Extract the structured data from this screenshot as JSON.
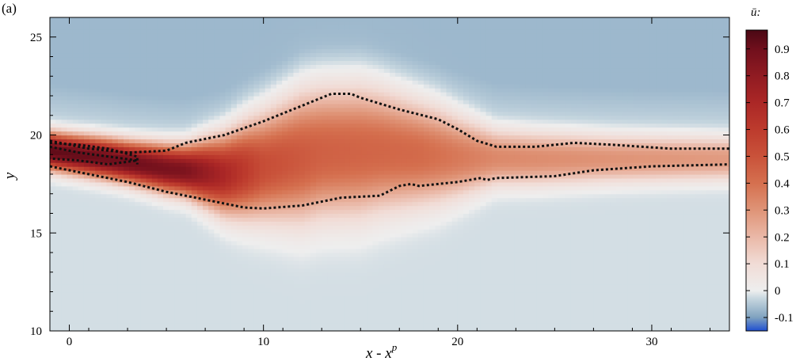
{
  "panel_label": "(a)",
  "chart_data": {
    "type": "heatmap",
    "title": "",
    "xlabel": "x - x^p",
    "xlabel_parts": {
      "base": "x - x",
      "sup": "p"
    },
    "ylabel": "y",
    "xlim": [
      -1,
      34
    ],
    "ylim": [
      10,
      26
    ],
    "x_ticks": [
      0,
      10,
      20,
      30
    ],
    "x_tick_labels": [
      "0",
      "10",
      "20",
      "30"
    ],
    "y_ticks": [
      10,
      15,
      20,
      25
    ],
    "y_tick_labels": [
      "10",
      "15",
      "20",
      "25"
    ],
    "colorbar": {
      "title": "ū:",
      "min": -0.15,
      "max": 0.97,
      "ticks": [
        -0.1,
        0,
        0.1,
        0.2,
        0.3,
        0.4,
        0.5,
        0.6,
        0.7,
        0.8,
        0.9
      ],
      "tick_labels": [
        "-0.1",
        "0",
        "0.1",
        "0.2",
        "0.3",
        "0.4",
        "0.5",
        "0.6",
        "0.7",
        "0.8",
        "0.9"
      ],
      "stops": [
        {
          "value": -0.15,
          "color": "#1f4fd0"
        },
        {
          "value": -0.1,
          "color": "#7fa2bf"
        },
        {
          "value": -0.03,
          "color": "#c6d6df"
        },
        {
          "value": 0.0,
          "color": "#eeeeee"
        },
        {
          "value": 0.1,
          "color": "#f1dcd6"
        },
        {
          "value": 0.2,
          "color": "#eab8a7"
        },
        {
          "value": 0.3,
          "color": "#df9477"
        },
        {
          "value": 0.4,
          "color": "#d5704f"
        },
        {
          "value": 0.5,
          "color": "#c9523a"
        },
        {
          "value": 0.6,
          "color": "#bd3b2d"
        },
        {
          "value": 0.7,
          "color": "#ab2726"
        },
        {
          "value": 0.8,
          "color": "#901b22"
        },
        {
          "value": 0.9,
          "color": "#700f1c"
        },
        {
          "value": 0.97,
          "color": "#4a0814"
        }
      ]
    },
    "field": {
      "background_value": -0.02,
      "upper_region_value": -0.07,
      "jet_centerline": [
        [
          -1,
          19.2
        ],
        [
          2,
          18.8
        ],
        [
          5,
          18.3
        ],
        [
          8,
          18.0
        ],
        [
          10,
          18.4
        ],
        [
          13,
          19.1
        ],
        [
          16,
          19.2
        ],
        [
          20,
          18.9
        ],
        [
          24,
          18.8
        ],
        [
          28,
          18.8
        ],
        [
          34,
          18.8
        ]
      ],
      "jet_peak_value": [
        [
          -1,
          0.93
        ],
        [
          3,
          0.9
        ],
        [
          6,
          0.86
        ],
        [
          8,
          0.7
        ],
        [
          10,
          0.52
        ],
        [
          13,
          0.45
        ],
        [
          18,
          0.42
        ],
        [
          22,
          0.33
        ],
        [
          28,
          0.3
        ],
        [
          34,
          0.28
        ]
      ],
      "jet_half_width": [
        [
          -1,
          0.9
        ],
        [
          3,
          1.0
        ],
        [
          6,
          1.2
        ],
        [
          9,
          2.2
        ],
        [
          12,
          3.0
        ],
        [
          15,
          3.0
        ],
        [
          19,
          2.2
        ],
        [
          22,
          1.3
        ],
        [
          28,
          1.1
        ],
        [
          34,
          1.0
        ]
      ]
    },
    "contours": [
      {
        "name": "",
        "points": [
          [
            -1,
            18.4
          ],
          [
            1,
            18.0
          ],
          [
            3,
            17.6
          ],
          [
            5,
            17.1
          ],
          [
            7,
            16.7
          ],
          [
            9,
            16.3
          ],
          [
            10,
            16.25
          ],
          [
            12,
            16.4
          ],
          [
            14,
            16.8
          ],
          [
            16,
            16.9
          ],
          [
            17,
            17.4
          ],
          [
            17.6,
            17.5
          ],
          [
            18,
            17.4
          ],
          [
            20,
            17.6
          ],
          [
            21.2,
            17.8
          ],
          [
            21.5,
            17.7
          ],
          [
            22,
            17.8
          ],
          [
            25,
            17.9
          ],
          [
            27,
            18.2
          ],
          [
            30,
            18.4
          ],
          [
            34,
            18.5
          ]
        ]
      },
      {
        "name": "",
        "points": [
          [
            -1,
            19.7
          ],
          [
            1,
            19.3
          ],
          [
            3,
            19.1
          ],
          [
            5,
            19.2
          ],
          [
            6,
            19.6
          ],
          [
            8,
            20.0
          ],
          [
            10,
            20.7
          ],
          [
            12,
            21.5
          ],
          [
            13.5,
            22.1
          ],
          [
            14.5,
            22.1
          ],
          [
            15,
            21.9
          ],
          [
            17,
            21.3
          ],
          [
            19,
            20.8
          ],
          [
            20,
            20.3
          ],
          [
            21,
            19.7
          ],
          [
            22,
            19.4
          ],
          [
            24,
            19.4
          ],
          [
            26,
            19.6
          ],
          [
            28,
            19.5
          ],
          [
            31,
            19.3
          ],
          [
            34,
            19.3
          ]
        ]
      },
      {
        "name": "",
        "points": [
          [
            -1,
            19.4
          ],
          [
            0.5,
            19.1
          ],
          [
            2,
            18.9
          ],
          [
            3.5,
            18.7
          ],
          [
            2,
            18.5
          ],
          [
            0.5,
            18.7
          ],
          [
            -1,
            18.8
          ]
        ]
      },
      {
        "name": "",
        "points": [
          [
            -1,
            19.6
          ],
          [
            0.5,
            19.5
          ],
          [
            2,
            19.3
          ],
          [
            3.5,
            18.9
          ],
          [
            3.5,
            18.5
          ]
        ]
      }
    ]
  }
}
